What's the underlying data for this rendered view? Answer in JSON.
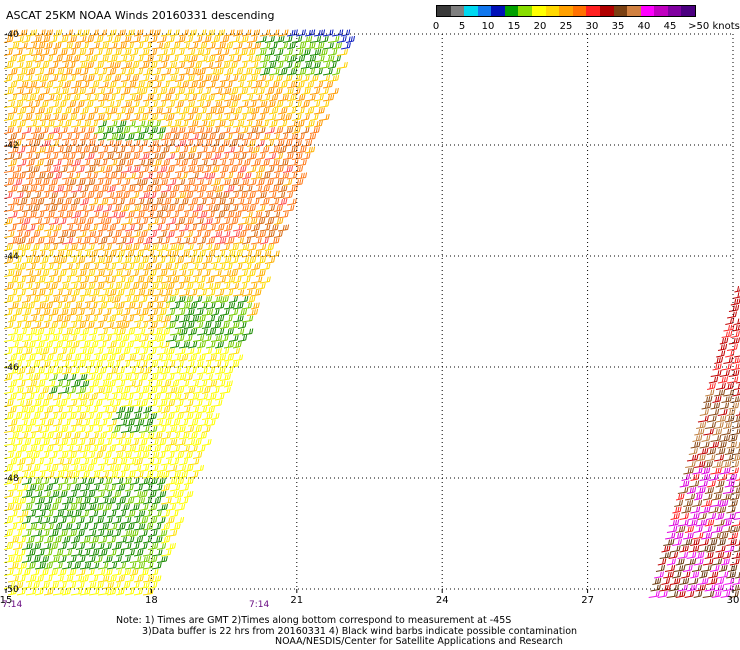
{
  "title": "ASCAT 25KM NOAA Winds 20160331 descending",
  "legend": {
    "labels": [
      "0",
      "5",
      "10",
      "15",
      "20",
      "25",
      "30",
      "35",
      "40",
      "45",
      ">50 knots"
    ],
    "colors": [
      "#3a3a3a",
      "#7f7f7f",
      "#00d8f0",
      "#1177ee",
      "#0010b8",
      "#00a000",
      "#88dd00",
      "#ffff00",
      "#ffd800",
      "#ffa000",
      "#ff7000",
      "#ff2020",
      "#b00000",
      "#7a4012",
      "#d08040",
      "#ff00ff",
      "#c000c0",
      "#8000a0",
      "#4b0080"
    ]
  },
  "map": {
    "lat_labels": [
      "-40",
      "-42",
      "-44",
      "-46",
      "-48",
      "-50"
    ],
    "lon_labels": [
      "15",
      "18",
      "21",
      "24",
      "27",
      "30"
    ],
    "times": [
      "7:14",
      "7:14"
    ]
  },
  "notes": {
    "line1": "Note: 1) Times are GMT 2)Times along bottom correspond to measurement at -45S",
    "line2": "3)Data buffer is 22 hrs from 20160331 4) Black wind barbs indicate possible contamination",
    "line3": "NOAA/NESDIS/Center for Satellite Applications and Research"
  }
}
